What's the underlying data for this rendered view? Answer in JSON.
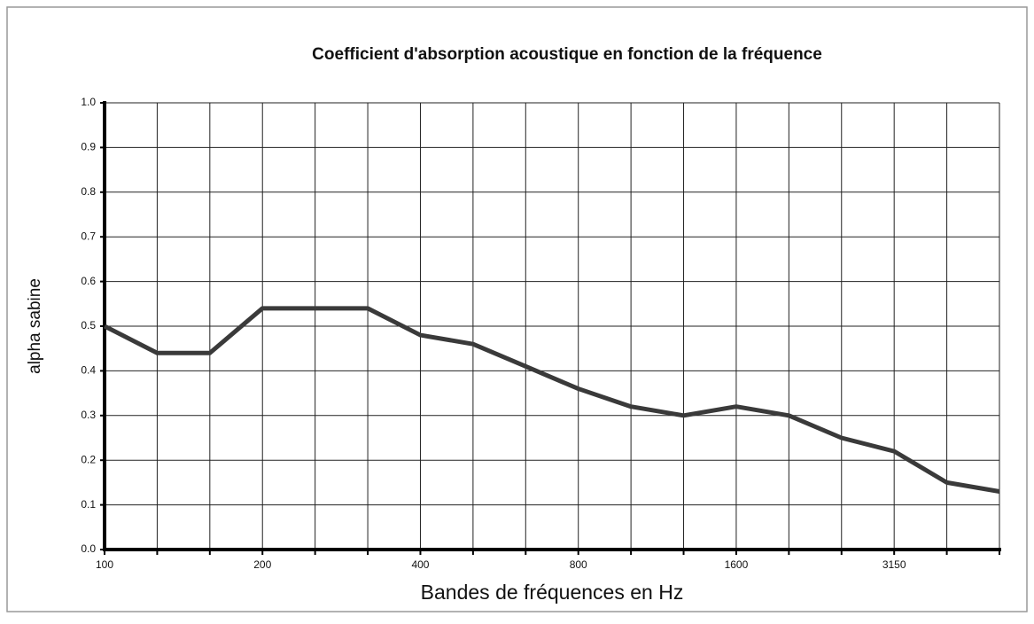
{
  "chart_data": {
    "type": "line",
    "title": "Coefficient d'absorption acoustique en fonction de la fréquence",
    "x_label": "Bandes de fréquences en Hz",
    "y_label": "alpha sabine",
    "categories": [
      "100",
      null,
      null,
      "200",
      null,
      null,
      "400",
      null,
      null,
      "800",
      null,
      null,
      "1600",
      null,
      null,
      "3150",
      null,
      null
    ],
    "values": [
      0.5,
      0.44,
      0.44,
      0.54,
      0.54,
      0.54,
      0.48,
      0.46,
      0.41,
      0.36,
      0.32,
      0.3,
      0.32,
      0.3,
      0.25,
      0.22,
      0.15,
      0.13
    ],
    "color": "#3a3a3a",
    "ylim": [
      0,
      1
    ],
    "yticks": [
      {
        "value": 0,
        "label": "0.0"
      },
      0.1,
      0.2,
      0.3,
      0.4,
      0.5,
      0.6,
      0.7,
      0.8,
      0.9,
      {
        "value": 1,
        "label": "1.0"
      }
    ],
    "grid": true
  }
}
